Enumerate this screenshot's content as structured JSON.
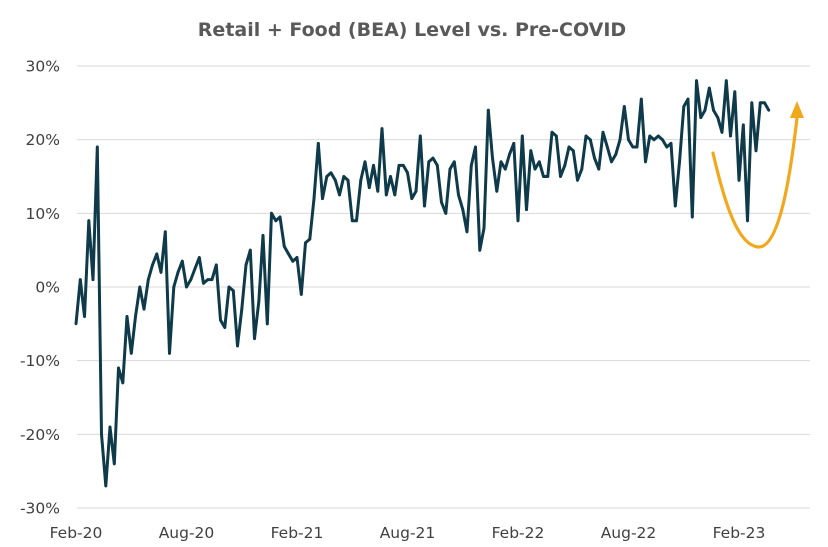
{
  "chart_data": {
    "type": "line",
    "title": "Retail + Food (BEA) Level vs. Pre-COVID",
    "xlabel": "",
    "ylabel": "",
    "ylim": [
      -30,
      30
    ],
    "y_ticks": [
      -30,
      -20,
      -10,
      0,
      10,
      20,
      30
    ],
    "y_tick_labels": [
      "-30%",
      "-20%",
      "-10%",
      "0%",
      "10%",
      "20%",
      "30%"
    ],
    "x_tick_labels": [
      "Feb-20",
      "Aug-20",
      "Feb-21",
      "Aug-21",
      "Feb-22",
      "Aug-22",
      "Feb-23"
    ],
    "x_tick_index": [
      0,
      26,
      52,
      78,
      104,
      130,
      156
    ],
    "grid": true,
    "colors": {
      "series": "#0e3a4a",
      "annotation": "#f2a81d",
      "grid": "#d9d9d9"
    },
    "series": [
      {
        "name": "Retail + Food (BEA) Level vs. Pre-COVID",
        "values": [
          -5,
          1,
          -4,
          9,
          1,
          19,
          -20,
          -27,
          -19,
          -24,
          -11,
          -13,
          -4,
          -9,
          -4,
          0,
          -3,
          1,
          3,
          4.5,
          2,
          7.5,
          -9,
          0,
          2,
          3.5,
          0,
          1,
          2.5,
          4,
          0.5,
          1,
          1,
          3,
          -4.5,
          -5.5,
          0,
          -0.5,
          -8,
          -3,
          3,
          5,
          -7,
          -2,
          7,
          -5,
          10,
          9,
          9.5,
          5.5,
          4.5,
          3.5,
          4,
          -1,
          6,
          6.5,
          12,
          19.5,
          12,
          15,
          15.5,
          14.5,
          12.5,
          15,
          14.5,
          9,
          9,
          14.5,
          17,
          13.5,
          16.5,
          13,
          21.5,
          12.5,
          15,
          12.5,
          16.5,
          16.5,
          15.5,
          12,
          13,
          20.5,
          11,
          17,
          17.5,
          16.5,
          11.5,
          10,
          16,
          17,
          12.5,
          10.5,
          7.5,
          16.5,
          19,
          5,
          8,
          24,
          17.5,
          13,
          17,
          16,
          18,
          19.5,
          9,
          20.5,
          10.5,
          18.5,
          16,
          17,
          15,
          15,
          21,
          20.5,
          15,
          16.5,
          19,
          18.5,
          14.5,
          16,
          20.5,
          20,
          17.5,
          16,
          21,
          19,
          17,
          18,
          20,
          24.5,
          20,
          19,
          19,
          25.5,
          17,
          20.5,
          20,
          20.5,
          20,
          19,
          19.5,
          11,
          17,
          24.5,
          25.5,
          9.5,
          28,
          23,
          24,
          27,
          24,
          23,
          21,
          28,
          20.5,
          26.5,
          14.5,
          22,
          9,
          25,
          18.5,
          25,
          25,
          24
        ]
      }
    ],
    "annotation": {
      "type": "curved-arrow",
      "color": "#f2a81d",
      "meaning": "rebound"
    }
  }
}
